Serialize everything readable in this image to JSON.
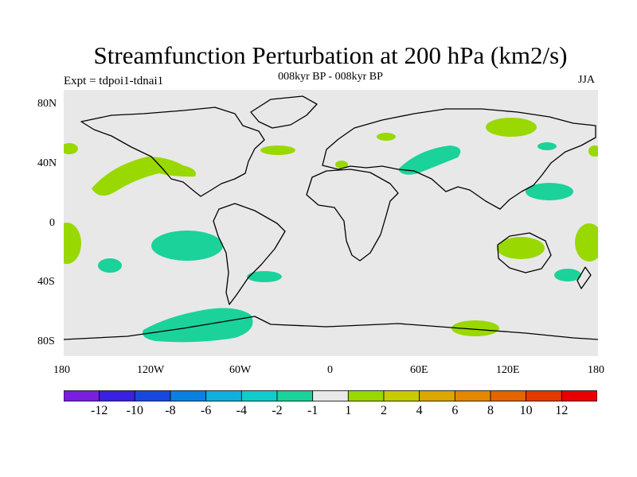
{
  "title": "Streamfunction Perturbation at 200 hPa (km2/s)",
  "subtitle_left": "Expt = tdpoi1-tdnai1",
  "subtitle_center": "008kyr BP - 008kyr BP",
  "subtitle_right": "JJA",
  "lat_labels": [
    "80N",
    "40N",
    "0",
    "40S",
    "80S"
  ],
  "lon_labels": [
    "180",
    "120W",
    "60W",
    "0",
    "60E",
    "120E",
    "180"
  ],
  "colorbar": {
    "labels": [
      "-12",
      "-10",
      "-8",
      "-6",
      "-4",
      "-2",
      "-1",
      "1",
      "2",
      "4",
      "6",
      "8",
      "10",
      "12"
    ],
    "colors": [
      "#7a1fe0",
      "#3a20e0",
      "#1848e0",
      "#0a80e0",
      "#10b0dc",
      "#12cccc",
      "#1ad29a",
      "#e8e8e8",
      "#99d800",
      "#c6cc00",
      "#dca800",
      "#e48800",
      "#e46400",
      "#e43a00",
      "#e80000"
    ]
  },
  "map_colors": {
    "negative": "#1ad29a",
    "positive": "#99d800",
    "background": "#e8e8e8"
  }
}
